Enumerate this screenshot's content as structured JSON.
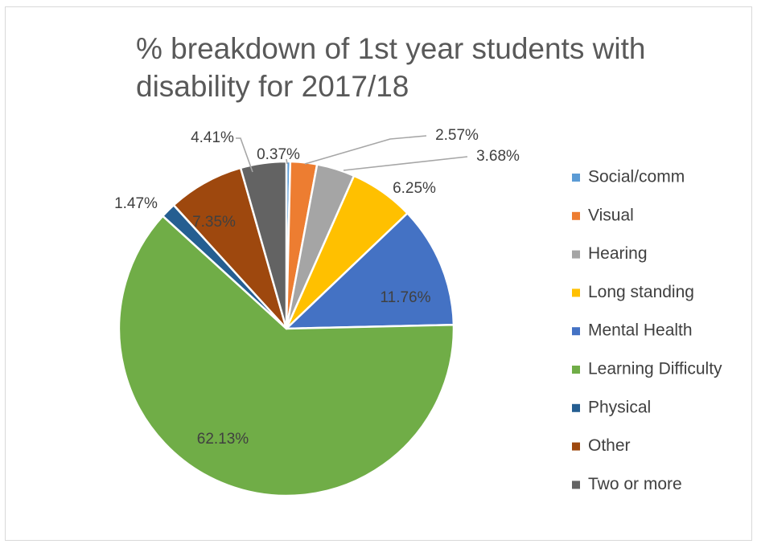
{
  "chart_data": {
    "type": "pie",
    "title": "% breakdown of 1st year students with disability for 2017/18",
    "title_lines": [
      "% breakdown of 1st year students with",
      "disability for 2017/18"
    ],
    "unit": "%",
    "legend_position": "right",
    "slices": [
      {
        "name": "Social/comm",
        "value": 0.37,
        "label": "0.37%",
        "color": "#5B9BD5"
      },
      {
        "name": "Visual",
        "value": 2.57,
        "label": "2.57%",
        "color": "#ED7D31"
      },
      {
        "name": "Hearing",
        "value": 3.68,
        "label": "3.68%",
        "color": "#A5A5A5"
      },
      {
        "name": "Long standing",
        "value": 6.25,
        "label": "6.25%",
        "color": "#FFC000"
      },
      {
        "name": "Mental Health",
        "value": 11.76,
        "label": "11.76%",
        "color": "#4472C4"
      },
      {
        "name": "Learning Difficulty",
        "value": 62.13,
        "label": "62.13%",
        "color": "#70AD47"
      },
      {
        "name": "Physical",
        "value": 1.47,
        "label": "1.47%",
        "color": "#255E91"
      },
      {
        "name": "Other",
        "value": 7.35,
        "label": "7.35%",
        "color": "#9E480E"
      },
      {
        "name": "Two or more",
        "value": 4.41,
        "label": "4.41%",
        "color": "#636363"
      }
    ]
  }
}
